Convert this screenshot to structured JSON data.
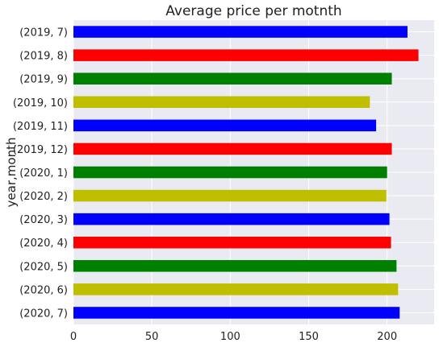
{
  "chart_data": {
    "type": "bar",
    "orientation": "horizontal",
    "title": "Average price per motnth",
    "xlabel": "",
    "ylabel": "year,month",
    "categories": [
      "(2019, 7)",
      "(2019, 8)",
      "(2019, 9)",
      "(2019, 10)",
      "(2019, 11)",
      "(2019, 12)",
      "(2020, 1)",
      "(2020, 2)",
      "(2020, 3)",
      "(2020, 4)",
      "(2020, 5)",
      "(2020, 6)",
      "(2020, 7)"
    ],
    "values": [
      213,
      220,
      203,
      189,
      193,
      203,
      200,
      199.5,
      201.5,
      202.5,
      206,
      207,
      208
    ],
    "colors": [
      "#0000ff",
      "#ff0000",
      "#008000",
      "#bfbf00",
      "#0000ff",
      "#ff0000",
      "#008000",
      "#bfbf00",
      "#0000ff",
      "#ff0000",
      "#008000",
      "#bfbf00",
      "#0000ff"
    ],
    "xlim": [
      0,
      230
    ],
    "xticks": [
      0,
      50,
      100,
      150,
      200
    ],
    "grid": true,
    "background": "#eaeaf2"
  }
}
